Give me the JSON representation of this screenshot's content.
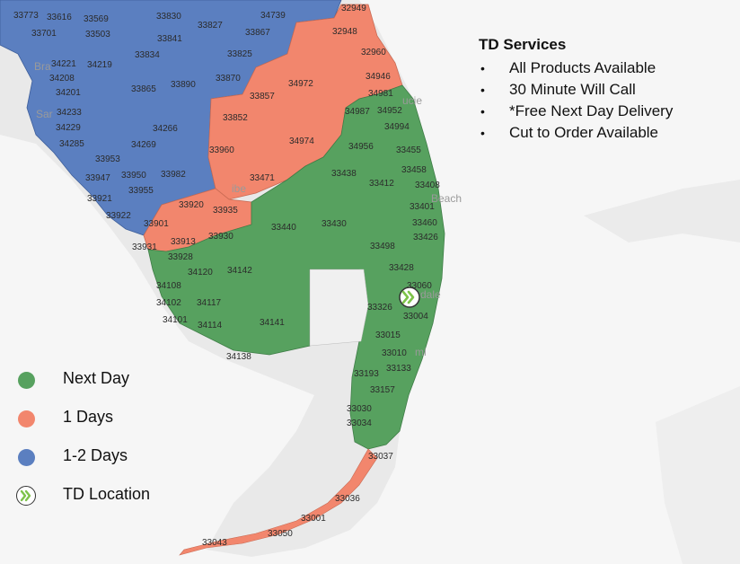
{
  "colors": {
    "next_day": "#57a15f",
    "one_day": "#f2866d",
    "one_two_days": "#5b7fc0",
    "land": "#e8e8e8",
    "water": "#f6f6f6",
    "location_icon": "#7ec34a"
  },
  "services": {
    "title": "TD Services",
    "items": [
      "All Products Available",
      "30 Minute Will Call",
      "*Free Next Day Delivery",
      "Cut to Order Available"
    ]
  },
  "legend": [
    {
      "label": "Next Day",
      "color": "#57a15f",
      "icon": "circle"
    },
    {
      "label": "1 Days",
      "color": "#f2866d",
      "icon": "circle"
    },
    {
      "label": "1-2 Days",
      "color": "#5b7fc0",
      "icon": "circle"
    },
    {
      "label": "TD Location",
      "color": "#7ec34a",
      "icon": "chevron-double-right-icon"
    }
  ],
  "place_labels": [
    "Bra",
    "Sar",
    "ucie",
    "Beach",
    "dale",
    "mi",
    "ibe"
  ],
  "zip_codes": [
    "33773",
    "33616",
    "33569",
    "33830",
    "33827",
    "34739",
    "32949",
    "33701",
    "33503",
    "33841",
    "33867",
    "32948",
    "33834",
    "33825",
    "34221",
    "34219",
    "32960",
    "34208",
    "34972",
    "34946",
    "33865",
    "33890",
    "33870",
    "34201",
    "33857",
    "34981",
    "34233",
    "34987",
    "34952",
    "33852",
    "34229",
    "34266",
    "34974",
    "34994",
    "34285",
    "34269",
    "34956",
    "33455",
    "33960",
    "33953",
    "33471",
    "33438",
    "33458",
    "33947",
    "33950",
    "33982",
    "33412",
    "33408",
    "33955",
    "33921",
    "33920",
    "33935",
    "33401",
    "33922",
    "33440",
    "33430",
    "33460",
    "33901",
    "33930",
    "33426",
    "33913",
    "33931",
    "33498",
    "33928",
    "33428",
    "34120",
    "34142",
    "34108",
    "33060",
    "34102",
    "34117",
    "33326",
    "33004",
    "34101",
    "34114",
    "34141",
    "33015",
    "33010",
    "34138",
    "33193",
    "33133",
    "33157",
    "33030",
    "33034",
    "33037",
    "33036",
    "33001",
    "33050",
    "33043"
  ]
}
